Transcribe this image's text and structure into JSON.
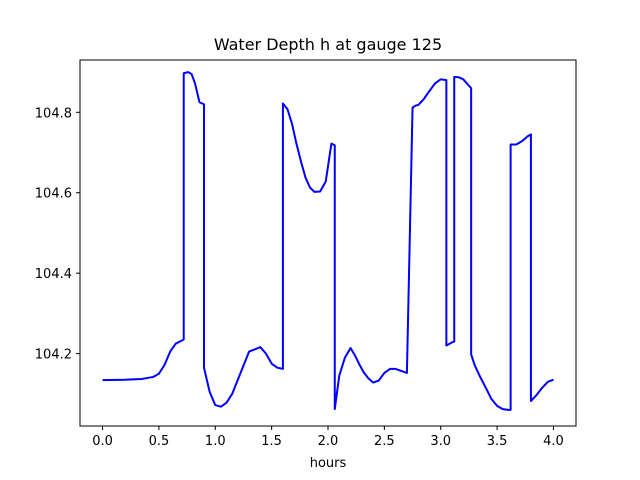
{
  "chart_data": {
    "type": "line",
    "title": "Water Depth h at gauge 125",
    "xlabel": "hours",
    "ylabel": "",
    "xlim": [
      -0.2,
      4.2
    ],
    "ylim": [
      104.02,
      104.93
    ],
    "xticks": [
      0.0,
      0.5,
      1.0,
      1.5,
      2.0,
      2.5,
      3.0,
      3.5,
      4.0
    ],
    "xtick_labels": [
      "0.0",
      "0.5",
      "1.0",
      "1.5",
      "2.0",
      "2.5",
      "3.0",
      "3.5",
      "4.0"
    ],
    "yticks": [
      104.2,
      104.4,
      104.6,
      104.8
    ],
    "ytick_labels": [
      "104.2",
      "104.4",
      "104.6",
      "104.8"
    ],
    "grid": false,
    "legend": "none",
    "series": [
      {
        "color": "#0000ff",
        "x": [
          0.0,
          0.2,
          0.35,
          0.45,
          0.5,
          0.55,
          0.6,
          0.65,
          0.7,
          0.72,
          0.72,
          0.76,
          0.79,
          0.82,
          0.86,
          0.9,
          0.9,
          0.95,
          1.0,
          1.05,
          1.1,
          1.15,
          1.2,
          1.3,
          1.4,
          1.45,
          1.5,
          1.55,
          1.6,
          1.6,
          1.64,
          1.68,
          1.72,
          1.76,
          1.8,
          1.84,
          1.88,
          1.93,
          1.98,
          2.03,
          2.06,
          2.06,
          2.1,
          2.15,
          2.2,
          2.24,
          2.28,
          2.32,
          2.36,
          2.4,
          2.45,
          2.5,
          2.55,
          2.6,
          2.65,
          2.7,
          2.75,
          2.78,
          2.8,
          2.8,
          2.85,
          2.9,
          2.95,
          3.0,
          3.05,
          3.05,
          3.1,
          3.12,
          3.12,
          3.16,
          3.2,
          3.25,
          3.27,
          3.27,
          3.3,
          3.35,
          3.4,
          3.45,
          3.5,
          3.55,
          3.6,
          3.62,
          3.62,
          3.67,
          3.72,
          3.77,
          3.8,
          3.8,
          3.85,
          3.9,
          3.95,
          4.0
        ],
        "y": [
          104.134,
          104.135,
          104.137,
          104.142,
          104.15,
          104.172,
          104.205,
          104.225,
          104.232,
          104.235,
          104.897,
          104.9,
          104.895,
          104.872,
          104.825,
          104.82,
          104.165,
          104.105,
          104.072,
          104.068,
          104.078,
          104.1,
          104.135,
          104.205,
          104.216,
          104.2,
          104.175,
          104.165,
          104.162,
          104.822,
          104.808,
          104.772,
          104.722,
          104.678,
          104.638,
          104.613,
          104.602,
          104.603,
          104.628,
          104.722,
          104.718,
          104.062,
          104.145,
          104.19,
          104.214,
          104.195,
          104.172,
          104.152,
          104.138,
          104.128,
          104.133,
          104.152,
          104.162,
          104.162,
          104.157,
          104.152,
          104.812,
          104.817,
          104.818,
          104.818,
          104.833,
          104.853,
          104.872,
          104.882,
          104.88,
          104.22,
          104.228,
          104.23,
          104.888,
          104.887,
          104.882,
          104.866,
          104.86,
          104.198,
          104.172,
          104.142,
          104.115,
          104.087,
          104.07,
          104.062,
          104.06,
          104.06,
          104.72,
          104.72,
          104.728,
          104.74,
          104.745,
          104.082,
          104.097,
          104.115,
          104.13,
          104.135
        ]
      }
    ]
  }
}
